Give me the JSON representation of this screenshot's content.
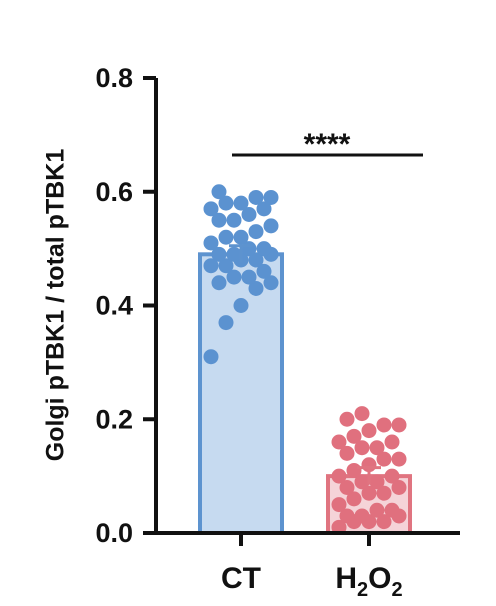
{
  "chart_data": {
    "type": "bar",
    "title": "",
    "ylabel": "Golgi pTBK1 / total pTBK1",
    "xlabel": "",
    "ylim": [
      0,
      0.8
    ],
    "yticks": [
      "0.0",
      "0.2",
      "0.4",
      "0.6",
      "0.8"
    ],
    "categories": [
      {
        "label": "CT",
        "parts": [
          {
            "t": "CT",
            "sub": false
          }
        ]
      },
      {
        "label": "H2O2",
        "parts": [
          {
            "t": "H",
            "sub": false
          },
          {
            "t": "2",
            "sub": true
          },
          {
            "t": "O",
            "sub": false
          },
          {
            "t": "2",
            "sub": true
          }
        ]
      }
    ],
    "values": [
      0.49,
      0.1
    ],
    "errors": [
      0.015,
      0.015
    ],
    "colors": {
      "CT": {
        "fill": "#c6daf0",
        "edge": "#5d93cf",
        "point": "#5b92d0"
      },
      "H2O2": {
        "fill": "#f5d3d8",
        "edge": "#e07480",
        "point": "#e0707e"
      }
    },
    "points": {
      "CT": [
        0.31,
        0.37,
        0.4,
        0.43,
        0.44,
        0.44,
        0.45,
        0.45,
        0.46,
        0.47,
        0.47,
        0.48,
        0.48,
        0.49,
        0.49,
        0.49,
        0.5,
        0.5,
        0.51,
        0.52,
        0.52,
        0.53,
        0.54,
        0.55,
        0.55,
        0.56,
        0.57,
        0.57,
        0.58,
        0.58,
        0.59,
        0.59,
        0.6
      ],
      "H2O2": [
        0.01,
        0.02,
        0.02,
        0.02,
        0.03,
        0.03,
        0.03,
        0.04,
        0.04,
        0.05,
        0.06,
        0.07,
        0.07,
        0.08,
        0.08,
        0.09,
        0.09,
        0.1,
        0.1,
        0.11,
        0.12,
        0.13,
        0.13,
        0.14,
        0.15,
        0.15,
        0.16,
        0.16,
        0.17,
        0.18,
        0.19,
        0.19,
        0.2,
        0.21
      ]
    },
    "significance": "****",
    "grid": false
  }
}
